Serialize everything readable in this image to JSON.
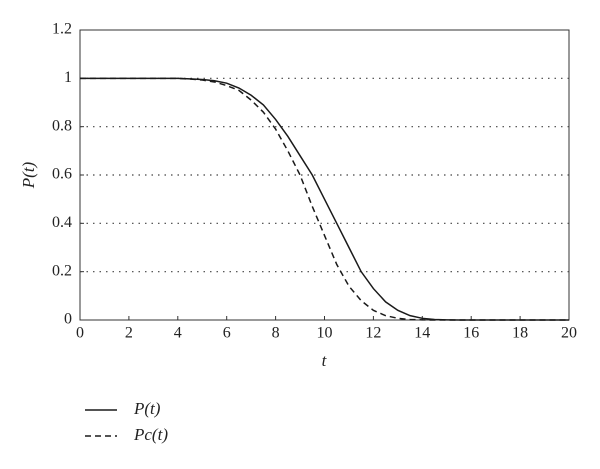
{
  "chart_data": {
    "type": "line",
    "xlabel": "t",
    "ylabel": "P(t)",
    "x": [
      0,
      0.5,
      1,
      1.5,
      2,
      2.5,
      3,
      3.5,
      4,
      4.5,
      5,
      5.5,
      6,
      6.5,
      7,
      7.5,
      8,
      8.5,
      9,
      9.5,
      10,
      10.5,
      11,
      11.5,
      12,
      12.5,
      13,
      13.5,
      14,
      14.5,
      15,
      15.5,
      16,
      16.5,
      17,
      17.5,
      18,
      18.5,
      19,
      19.5,
      20
    ],
    "series": [
      {
        "name": "P(t)",
        "color": "#1a1a1a",
        "dash": "solid",
        "values": [
          1,
          1,
          1,
          1,
          1,
          1,
          1,
          1,
          1,
          0.998,
          0.995,
          0.99,
          0.98,
          0.96,
          0.93,
          0.89,
          0.83,
          0.76,
          0.68,
          0.6,
          0.5,
          0.4,
          0.3,
          0.2,
          0.13,
          0.075,
          0.04,
          0.018,
          0.007,
          0.002,
          0.0005,
          0,
          0,
          0,
          0,
          0,
          0,
          0,
          0,
          0,
          0
        ]
      },
      {
        "name": "Pc(t)",
        "color": "#1a1a1a",
        "dash": "dashed",
        "values": [
          1,
          1,
          1,
          1,
          1,
          1,
          1,
          1,
          1,
          0.997,
          0.993,
          0.985,
          0.97,
          0.95,
          0.91,
          0.86,
          0.79,
          0.7,
          0.6,
          0.47,
          0.35,
          0.23,
          0.14,
          0.08,
          0.04,
          0.018,
          0.007,
          0.002,
          0.0005,
          0,
          0,
          0,
          0,
          0,
          0,
          0,
          0,
          0,
          0,
          0,
          0
        ]
      }
    ],
    "xlim": [
      0,
      20
    ],
    "xticks": [
      0,
      2,
      4,
      6,
      8,
      10,
      12,
      14,
      16,
      18,
      20
    ],
    "ylim": [
      0,
      1.2
    ],
    "yticks": [
      0,
      0.2,
      0.4,
      0.6,
      0.8,
      1,
      1.2
    ],
    "grid": true
  }
}
